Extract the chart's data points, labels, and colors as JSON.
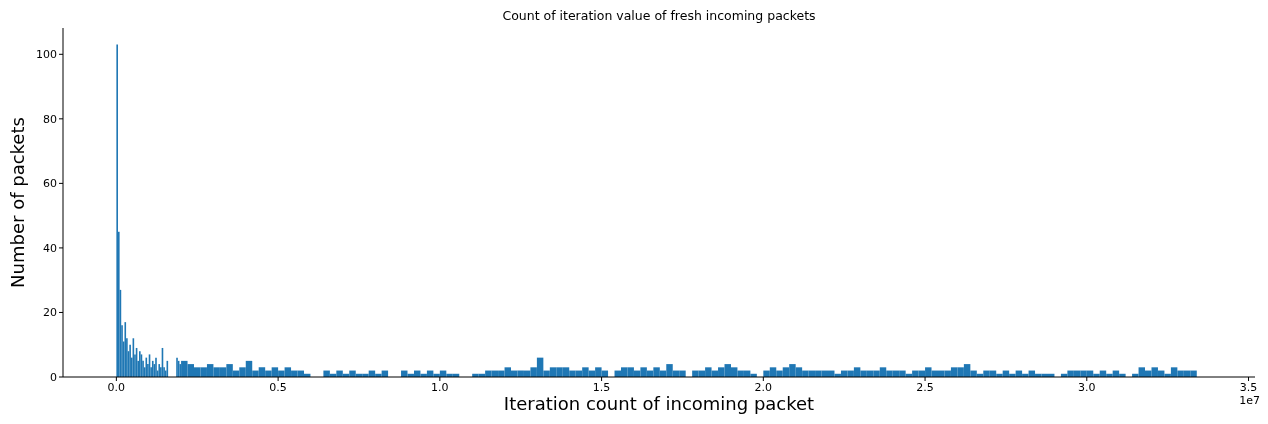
{
  "chart_data": {
    "type": "histogram",
    "title": "Count of iteration value of fresh incoming packets",
    "xlabel": "Iteration count of incoming packet",
    "ylabel": "Number of packets",
    "color": "#1f77b4",
    "bins": [
      0,
      0.005,
      0.01,
      0.015,
      0.02,
      0.025,
      0.03,
      0.035,
      0.04,
      0.045,
      0.05,
      0.055,
      0.06,
      0.065,
      0.07,
      0.075,
      0.08,
      0.085,
      0.09,
      0.095,
      0.1,
      0.105,
      0.11,
      0.115,
      0.12,
      0.125,
      0.13,
      0.135,
      0.14,
      0.145,
      0.15,
      0.155,
      0.16,
      0.185,
      0.19,
      0.195,
      0.2,
      0.22,
      0.24,
      0.26,
      0.28,
      0.3,
      0.32,
      0.34,
      0.36,
      0.38,
      0.4,
      0.42,
      0.44,
      0.46,
      0.48,
      0.5,
      0.52,
      0.54,
      0.56,
      0.58,
      0.6,
      0.64,
      0.66,
      0.68,
      0.7,
      0.72,
      0.74,
      0.76,
      0.78,
      0.8,
      0.82,
      0.84,
      0.88,
      0.9,
      0.92,
      0.94,
      0.96,
      0.98,
      1.0,
      1.02,
      1.04,
      1.06,
      1.1,
      1.12,
      1.14,
      1.16,
      1.18,
      1.2,
      1.22,
      1.24,
      1.26,
      1.28,
      1.3,
      1.32,
      1.34,
      1.36,
      1.38,
      1.4,
      1.42,
      1.44,
      1.46,
      1.48,
      1.5,
      1.52,
      1.54,
      1.56,
      1.58,
      1.6,
      1.62,
      1.64,
      1.66,
      1.68,
      1.7,
      1.72,
      1.74,
      1.76,
      1.78,
      1.8,
      1.82,
      1.84,
      1.86,
      1.88,
      1.9,
      1.92,
      1.94,
      1.96,
      1.98,
      2.0,
      2.02,
      2.04,
      2.06,
      2.08,
      2.1,
      2.12,
      2.14,
      2.16,
      2.18,
      2.2,
      2.22,
      2.24,
      2.26,
      2.28,
      2.3,
      2.32,
      2.34,
      2.36,
      2.38,
      2.4,
      2.42,
      2.44,
      2.46,
      2.48,
      2.5,
      2.52,
      2.54,
      2.56,
      2.58,
      2.6,
      2.62,
      2.64,
      2.66,
      2.68,
      2.7,
      2.72,
      2.74,
      2.76,
      2.78,
      2.8,
      2.82,
      2.84,
      2.86,
      2.88,
      2.9,
      2.92,
      2.94,
      2.96,
      2.98,
      3.0,
      3.02,
      3.04,
      3.06,
      3.08,
      3.1,
      3.12,
      3.14,
      3.16,
      3.18,
      3.2,
      3.22,
      3.24,
      3.26,
      3.28,
      3.3,
      3.32,
      3.34
    ],
    "values": [
      103,
      45,
      27,
      16,
      11,
      17,
      12,
      8,
      10,
      6,
      12,
      7,
      9,
      5,
      8,
      7,
      5,
      3,
      6,
      4,
      7,
      3,
      5,
      4,
      6,
      2,
      4,
      3,
      9,
      3,
      2,
      5,
      0,
      6,
      5,
      4,
      5,
      4,
      3,
      3,
      4,
      3,
      3,
      4,
      2,
      3,
      5,
      2,
      3,
      2,
      3,
      2,
      3,
      2,
      2,
      1,
      0,
      2,
      1,
      2,
      1,
      2,
      1,
      1,
      2,
      1,
      2,
      0,
      2,
      1,
      2,
      1,
      2,
      1,
      2,
      1,
      1,
      0,
      1,
      1,
      2,
      2,
      2,
      3,
      2,
      2,
      2,
      3,
      6,
      2,
      3,
      3,
      3,
      2,
      2,
      3,
      2,
      3,
      2,
      0,
      2,
      3,
      3,
      2,
      3,
      2,
      3,
      2,
      4,
      2,
      2,
      0,
      2,
      2,
      3,
      2,
      3,
      4,
      3,
      2,
      2,
      1,
      0,
      2,
      3,
      2,
      3,
      4,
      3,
      2,
      2,
      2,
      2,
      2,
      1,
      2,
      2,
      3,
      2,
      2,
      2,
      3,
      2,
      2,
      2,
      1,
      2,
      2,
      3,
      2,
      2,
      2,
      3,
      3,
      4,
      2,
      1,
      2,
      2,
      1,
      2,
      1,
      2,
      1,
      2,
      1,
      1,
      1,
      0,
      1,
      2,
      2,
      2,
      2,
      1,
      2,
      1,
      2,
      1,
      0,
      1,
      3,
      2,
      3,
      2,
      1,
      3,
      2,
      2,
      2
    ],
    "xlim": [
      -0.165,
      3.52
    ],
    "xticks": [
      {
        "value": 0,
        "label": "0.0"
      },
      0.5,
      {
        "value": 1,
        "label": "1.0"
      },
      1.5,
      {
        "value": 2,
        "label": "2.0"
      },
      2.5,
      {
        "value": 3,
        "label": "3.0"
      },
      3.5
    ],
    "ylim": [
      0,
      108.15
    ],
    "yticks": [
      0,
      20,
      40,
      60,
      80,
      100
    ],
    "annotations": [
      "1e7"
    ]
  }
}
